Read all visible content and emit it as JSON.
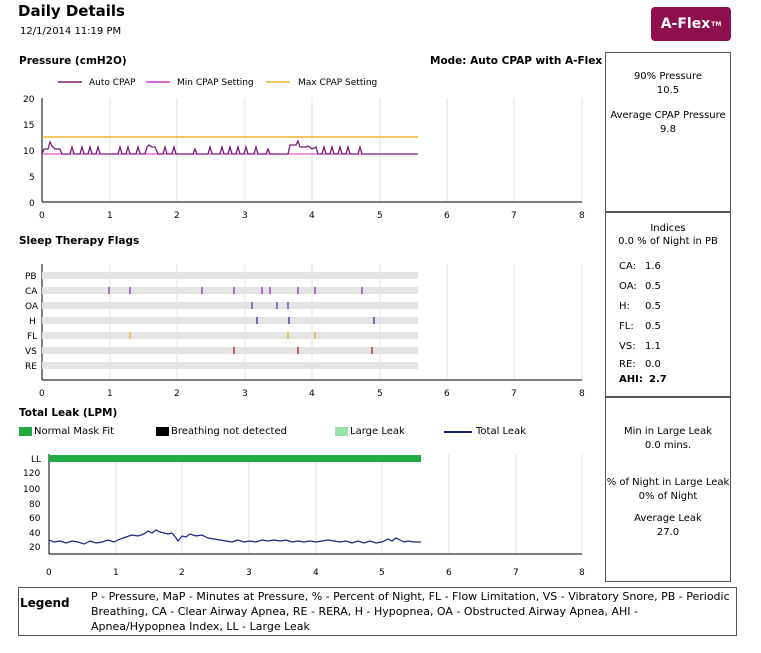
{
  "header": {
    "title": "Daily Details",
    "datetime": "12/1/2014 11:19 PM",
    "logo": "A-Flex",
    "logo_tm": "TM"
  },
  "pressure": {
    "title": "Pressure (cmH2O)",
    "mode": "Mode: Auto CPAP with A-Flex",
    "legend": [
      "Auto CPAP",
      "Min CPAP Setting",
      "Max CPAP Setting"
    ],
    "colors": {
      "auto": "#7a1a7a",
      "min": "#cc33cc",
      "max": "#f2b233"
    },
    "y_ticks": [
      "20",
      "15",
      "10",
      "5",
      "0"
    ],
    "x_ticks": [
      "0",
      "1",
      "2",
      "3",
      "4",
      "5",
      "6",
      "7",
      "8"
    ]
  },
  "flags": {
    "title": "Sleep Therapy Flags",
    "rows": [
      "PB",
      "CA",
      "OA",
      "H",
      "FL",
      "VS",
      "RE"
    ],
    "x_ticks": [
      "0",
      "1",
      "2",
      "3",
      "4",
      "5",
      "6",
      "7",
      "8"
    ]
  },
  "leak": {
    "title": "Total Leak (LPM)",
    "legend": [
      "Normal Mask Fit",
      "Breathing not detected",
      "Large Leak",
      "Total Leak"
    ],
    "colors": {
      "normal": "#22aa44",
      "breathing": "#000000",
      "large": "#99e0aa",
      "total": "#1a237e"
    },
    "y_ticks": [
      "LL",
      "120",
      "100",
      "80",
      "60",
      "40",
      "20"
    ],
    "x_ticks": [
      "0",
      "1",
      "2",
      "3",
      "4",
      "5",
      "6",
      "7",
      "8"
    ]
  },
  "side": {
    "p90_label": "90% Pressure",
    "p90_value": "10.5",
    "avg_label": "Average CPAP Pressure",
    "avg_value": "9.8",
    "indices_label": "Indices",
    "pb_line": "0.0 % of Night in PB",
    "indices": [
      {
        "label": "CA:",
        "value": "1.6"
      },
      {
        "label": "OA:",
        "value": "0.5"
      },
      {
        "label": "H:",
        "value": "0.5"
      },
      {
        "label": "FL:",
        "value": "0.5"
      },
      {
        "label": "VS:",
        "value": "1.1"
      },
      {
        "label": "RE:",
        "value": "0.0"
      }
    ],
    "ahi_label": "AHI:",
    "ahi_value": "2.7",
    "large_leak_label": "Min in Large Leak",
    "large_leak_value": "0.0  mins.",
    "pct_large_label": "% of Night in Large Leak",
    "pct_large_value": "0% of Night",
    "avg_leak_label": "Average Leak",
    "avg_leak_value": "27.0"
  },
  "legend": {
    "title": "Legend",
    "text": "P - Pressure, MaP - Minutes at Pressure, % - Percent of Night, FL - Flow Limitation, VS - Vibratory Snore, PB - Periodic Breathing, CA - Clear Airway Apnea, RE - RERA, H - Hypopnea, OA - Obstructed Airway Apnea, AHI - Apnea/Hypopnea Index, LL - Large Leak"
  }
}
